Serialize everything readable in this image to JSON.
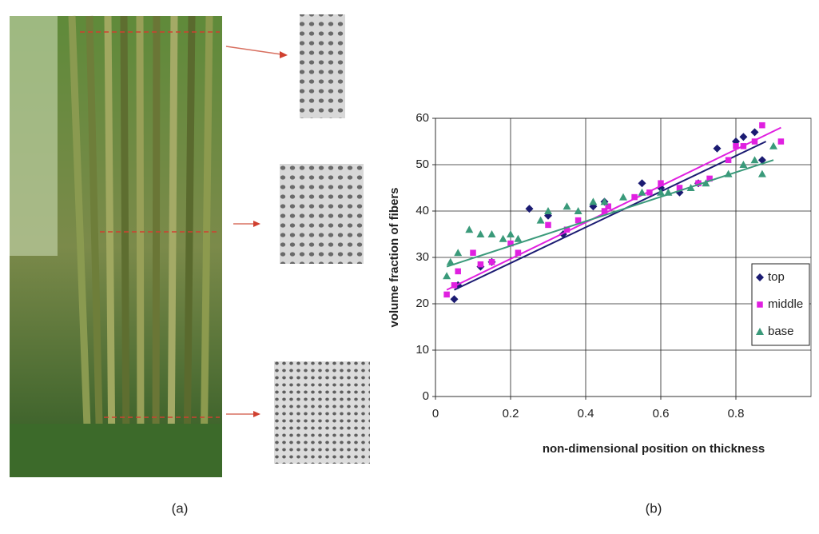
{
  "panel_labels": [
    "(a)",
    "(b)"
  ],
  "chart_data": {
    "type": "scatter",
    "x_label": "non-dimensional position on thickness",
    "y_label": "volume fraction of fibers",
    "xlim": [
      0,
      1
    ],
    "xticks": [
      0,
      0.2,
      0.4,
      0.6,
      0.8
    ],
    "ylim": [
      0,
      60
    ],
    "yticks": [
      0,
      10,
      20,
      30,
      40,
      50,
      60
    ],
    "grid": true,
    "legend": "right",
    "series": [
      {
        "name": "top",
        "color": "#1b1b72",
        "marker": "diamond",
        "x": [
          0.05,
          0.06,
          0.12,
          0.15,
          0.25,
          0.3,
          0.34,
          0.42,
          0.45,
          0.55,
          0.6,
          0.65,
          0.7,
          0.75,
          0.8,
          0.82,
          0.85,
          0.87
        ],
        "values": [
          21,
          24,
          28,
          29,
          40.5,
          39,
          35,
          41,
          42,
          46,
          45,
          44,
          46,
          53.5,
          55,
          56,
          57,
          51
        ],
        "trend_x": [
          0.05,
          0.88
        ],
        "trend_y": [
          23,
          55
        ]
      },
      {
        "name": "middle",
        "color": "#e020e0",
        "marker": "square",
        "x": [
          0.03,
          0.05,
          0.06,
          0.1,
          0.12,
          0.15,
          0.2,
          0.22,
          0.3,
          0.35,
          0.38,
          0.45,
          0.46,
          0.53,
          0.57,
          0.6,
          0.65,
          0.7,
          0.73,
          0.78,
          0.8,
          0.82,
          0.85,
          0.87,
          0.92
        ],
        "values": [
          22,
          24,
          27,
          31,
          28.5,
          29,
          33,
          31,
          37,
          36,
          38,
          40,
          41,
          43,
          44,
          46,
          45,
          46,
          47,
          51,
          54,
          54,
          55,
          58.5,
          55
        ],
        "trend_x": [
          0.03,
          0.92
        ],
        "trend_y": [
          23,
          58
        ]
      },
      {
        "name": "base",
        "color": "#3a9a7a",
        "marker": "triangle",
        "x": [
          0.03,
          0.04,
          0.06,
          0.09,
          0.12,
          0.15,
          0.18,
          0.2,
          0.22,
          0.28,
          0.3,
          0.35,
          0.38,
          0.42,
          0.45,
          0.5,
          0.55,
          0.6,
          0.62,
          0.68,
          0.72,
          0.78,
          0.82,
          0.85,
          0.87,
          0.9
        ],
        "values": [
          26,
          29,
          31,
          36,
          35,
          35,
          34,
          35,
          34,
          38,
          40,
          41,
          40,
          42,
          42,
          43,
          44,
          44,
          44,
          45,
          46,
          48,
          50,
          51,
          48,
          54
        ],
        "trend_x": [
          0.03,
          0.9
        ],
        "trend_y": [
          28,
          51
        ]
      }
    ]
  }
}
